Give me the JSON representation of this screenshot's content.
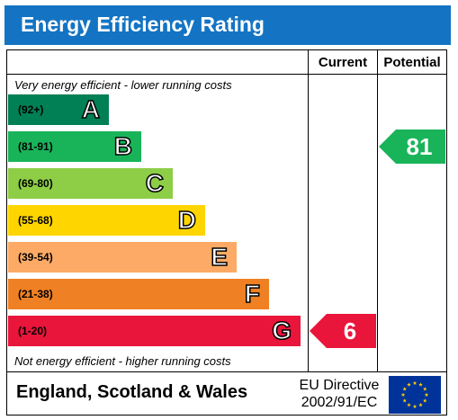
{
  "title": "Energy Efficiency Rating",
  "columns": {
    "current": "Current",
    "potential": "Potential"
  },
  "notes": {
    "top": "Very energy efficient - lower running costs",
    "bottom": "Not energy efficient - higher running costs"
  },
  "footer": {
    "region": "England, Scotland & Wales",
    "directive_line1": "EU Directive",
    "directive_line2": "2002/91/EC"
  },
  "chart_data": {
    "type": "bar",
    "categories": [
      "A",
      "B",
      "C",
      "D",
      "E",
      "F",
      "G"
    ],
    "ranges": [
      "(92+)",
      "(81-91)",
      "(69-80)",
      "(55-68)",
      "(39-54)",
      "(21-38)",
      "(1-20)"
    ],
    "band_colors": [
      "#008054",
      "#19b459",
      "#8dce46",
      "#ffd500",
      "#fcaa65",
      "#ef8023",
      "#e9153b"
    ],
    "current": {
      "value": 6,
      "band": "G",
      "color": "#e9153b"
    },
    "potential": {
      "value": 81,
      "band": "B",
      "color": "#19b459"
    }
  },
  "colors": {
    "header": "#1474c3",
    "flag": "#003399",
    "stars": "#ffcc00"
  }
}
